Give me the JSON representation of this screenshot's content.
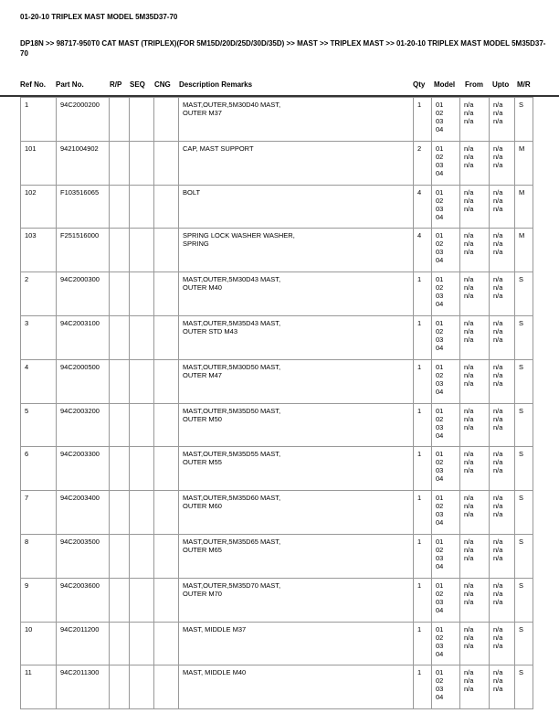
{
  "title": "01-20-10 TRIPLEX MAST MODEL 5M35D37-70",
  "breadcrumb": "DP18N >> 98717-950T0 CAT MAST  (TRIPLEX)(FOR 5M15D/20D/25D/30D/35D) >> MAST >> TRIPLEX MAST >> 01-20-10 TRIPLEX MAST MODEL 5M35D37-70",
  "headers": {
    "ref": "Ref No.",
    "part": "Part No.",
    "rp": "R/P",
    "seq": "SEQ",
    "cng": "CNG",
    "desc": "Description Remarks",
    "qty": "Qty",
    "model": "Model",
    "from": "From",
    "upto": "Upto",
    "mr": "M/R"
  },
  "rows": [
    {
      "ref": "1",
      "part": "94C2000200",
      "desc": "MAST,OUTER,5M30D40 MAST,\nOUTER M37",
      "qty": "1",
      "mr": "S"
    },
    {
      "ref": "101",
      "part": "9421004902",
      "desc": "CAP, MAST SUPPORT",
      "qty": "2",
      "mr": "M"
    },
    {
      "ref": "102",
      "part": "F103516065",
      "desc": "BOLT",
      "qty": "4",
      "mr": "M"
    },
    {
      "ref": "103",
      "part": "F251516000",
      "desc": "SPRING LOCK WASHER WASHER,\nSPRING",
      "qty": "4",
      "mr": "M"
    },
    {
      "ref": "2",
      "part": "94C2000300",
      "desc": "MAST,OUTER,5M30D43 MAST,\nOUTER M40",
      "qty": "1",
      "mr": "S"
    },
    {
      "ref": "3",
      "part": "94C2003100",
      "desc": "MAST,OUTER,5M35D43 MAST,\nOUTER STD M43",
      "qty": "1",
      "mr": "S"
    },
    {
      "ref": "4",
      "part": "94C2000500",
      "desc": "MAST,OUTER,5M30D50 MAST,\nOUTER M47",
      "qty": "1",
      "mr": "S"
    },
    {
      "ref": "5",
      "part": "94C2003200",
      "desc": "MAST,OUTER,5M35D50 MAST,\nOUTER M50",
      "qty": "1",
      "mr": "S"
    },
    {
      "ref": "6",
      "part": "94C2003300",
      "desc": "MAST,OUTER,5M35D55 MAST,\nOUTER M55",
      "qty": "1",
      "mr": "S"
    },
    {
      "ref": "7",
      "part": "94C2003400",
      "desc": "MAST,OUTER,5M35D60 MAST,\nOUTER M60",
      "qty": "1",
      "mr": "S"
    },
    {
      "ref": "8",
      "part": "94C2003500",
      "desc": "MAST,OUTER,5M35D65 MAST,\nOUTER M65",
      "qty": "1",
      "mr": "S"
    },
    {
      "ref": "9",
      "part": "94C2003600",
      "desc": "MAST,OUTER,5M35D70 MAST,\nOUTER M70",
      "qty": "1",
      "mr": "S"
    },
    {
      "ref": "10",
      "part": "94C2011200",
      "desc": "MAST, MIDDLE M37",
      "qty": "1",
      "mr": "S"
    },
    {
      "ref": "11",
      "part": "94C2011300",
      "desc": "MAST, MIDDLE M40",
      "qty": "1",
      "mr": "S"
    }
  ],
  "models": "01\n02\n03\n04",
  "from": "n/a\nn/a\nn/a",
  "upto": "n/a\nn/a\nn/a"
}
